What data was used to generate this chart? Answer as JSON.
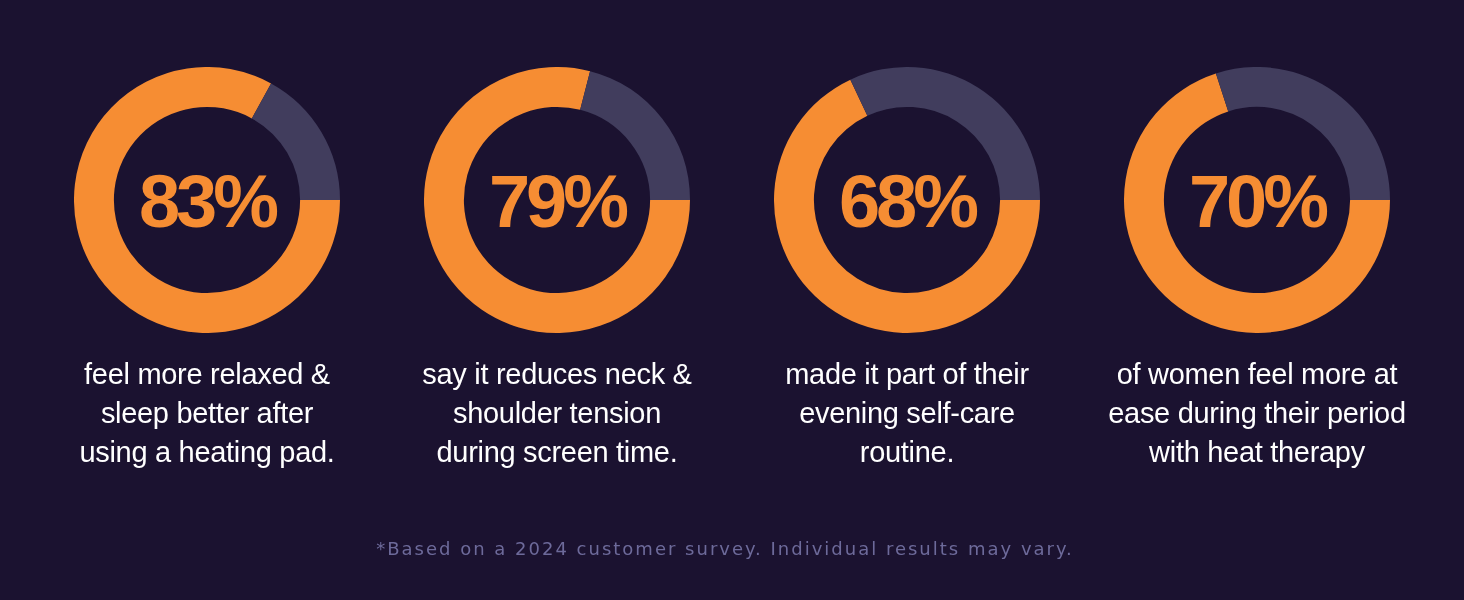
{
  "chart_data": [
    {
      "type": "donut",
      "title": "feel more relaxed &\nsleep better after\nusing a heating pad.",
      "categories": [
        null,
        null
      ],
      "values": [
        83,
        17
      ],
      "colors": [
        "#f68d33",
        "#413d5d"
      ],
      "value_labels": [
        "83%",
        null
      ]
    },
    {
      "type": "donut",
      "title": "say it reduces neck &\nshoulder tension\nduring screen time.",
      "categories": [
        null,
        null
      ],
      "values": [
        79,
        21
      ],
      "colors": [
        "#f68d33",
        "#413d5d"
      ],
      "value_labels": [
        "79%",
        null
      ]
    },
    {
      "type": "donut",
      "title": "made it part of their\nevening self-care\nroutine.",
      "categories": [
        null,
        null
      ],
      "values": [
        68,
        32
      ],
      "colors": [
        "#f68d33",
        "#413d5d"
      ],
      "value_labels": [
        "68%",
        null
      ]
    },
    {
      "type": "donut",
      "title": "of women feel more at\nease during their period\nwith heat therapy",
      "categories": [
        null,
        null
      ],
      "values": [
        70,
        30
      ],
      "colors": [
        "#f68d33",
        "#413d5d"
      ],
      "value_labels": [
        "70%",
        null
      ]
    },
    {
      "type": "other",
      "annotations": [
        "*Based on a 2024 customer survey. Individual results may vary."
      ]
    }
  ]
}
